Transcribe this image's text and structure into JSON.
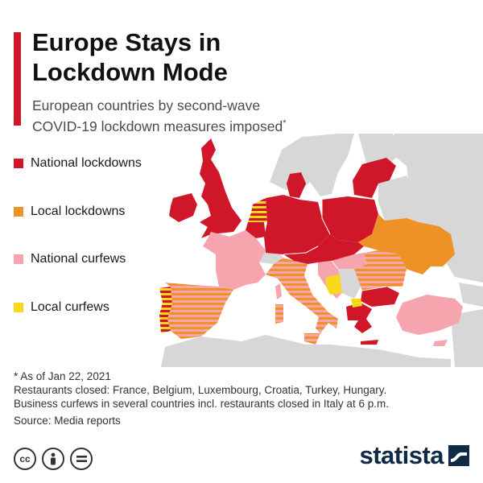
{
  "header": {
    "title_line1": "Europe Stays in",
    "title_line2": "Lockdown Mode",
    "subtitle_line1": "European countries by second-wave",
    "subtitle_line2": "COVID-19 lockdown measures imposed",
    "subtitle_mark": "*"
  },
  "colors": {
    "accent": "#d0172a",
    "national_lockdown": "#d0172a",
    "local_lockdown": "#ee9226",
    "national_curfew": "#f6a4ae",
    "local_curfew": "#f7d81c",
    "no_data": "#d7d7d7",
    "sea": "#ffffff"
  },
  "legend": {
    "items": [
      {
        "key": "national_lockdown",
        "label": "National lockdowns",
        "color": "#d0172a"
      },
      {
        "key": "local_lockdown",
        "label": "Local lockdowns",
        "color": "#ee9226"
      },
      {
        "key": "national_curfew",
        "label": "National curfews",
        "color": "#f6a4ae"
      },
      {
        "key": "local_curfew",
        "label": "Local curfews",
        "color": "#f7d81c"
      }
    ]
  },
  "map": {
    "regions": [
      {
        "name": "United Kingdom",
        "measure": "national_lockdown"
      },
      {
        "name": "Ireland",
        "measure": "national_lockdown"
      },
      {
        "name": "Denmark",
        "measure": "national_lockdown"
      },
      {
        "name": "Germany",
        "measure": "national_lockdown"
      },
      {
        "name": "Poland",
        "measure": "national_lockdown"
      },
      {
        "name": "Czechia",
        "measure": "national_lockdown"
      },
      {
        "name": "Slovakia",
        "measure": "national_lockdown"
      },
      {
        "name": "Austria",
        "measure": "national_lockdown"
      },
      {
        "name": "Netherlands",
        "measure": "national_lockdown+local_curfew"
      },
      {
        "name": "Belgium",
        "measure": "national_lockdown"
      },
      {
        "name": "Lithuania",
        "measure": "national_lockdown"
      },
      {
        "name": "Latvia",
        "measure": "national_lockdown"
      },
      {
        "name": "Estonia",
        "measure": "national_lockdown"
      },
      {
        "name": "Greece",
        "measure": "national_lockdown"
      },
      {
        "name": "Bulgaria",
        "measure": "national_lockdown"
      },
      {
        "name": "Portugal",
        "measure": "national_lockdown+local_curfew"
      },
      {
        "name": "France",
        "measure": "national_curfew"
      },
      {
        "name": "Hungary",
        "measure": "national_curfew"
      },
      {
        "name": "Croatia",
        "measure": "national_curfew"
      },
      {
        "name": "Turkey",
        "measure": "national_curfew"
      },
      {
        "name": "Spain",
        "measure": "local_lockdown+national_curfew"
      },
      {
        "name": "Italy",
        "measure": "local_lockdown+national_curfew"
      },
      {
        "name": "Romania",
        "measure": "local_lockdown+national_curfew"
      },
      {
        "name": "Ukraine",
        "measure": "local_lockdown"
      },
      {
        "name": "Bosnia and Herzegovina",
        "measure": "local_curfew"
      },
      {
        "name": "North Macedonia",
        "measure": "local_curfew"
      },
      {
        "name": "Serbia",
        "measure": "none"
      },
      {
        "name": "Norway",
        "measure": "none"
      },
      {
        "name": "Sweden",
        "measure": "none"
      },
      {
        "name": "Finland",
        "measure": "none"
      },
      {
        "name": "Belarus",
        "measure": "none"
      },
      {
        "name": "Russia",
        "measure": "none"
      },
      {
        "name": "Switzerland",
        "measure": "none"
      }
    ]
  },
  "notes": {
    "line1": "* As of Jan 22, 2021",
    "line2": "Restaurants closed: France, Belgium, Luxembourg, Croatia, Turkey, Hungary.",
    "line3": "Business curfews in several countries incl. restaurants closed in Italy at 6 p.m.",
    "source": "Source: Media reports"
  },
  "footer": {
    "license_icons": [
      "creative-commons-icon",
      "attribution-icon",
      "no-derivatives-icon"
    ],
    "license_text": [
      "cc",
      "",
      "="
    ],
    "brand": "statista"
  }
}
